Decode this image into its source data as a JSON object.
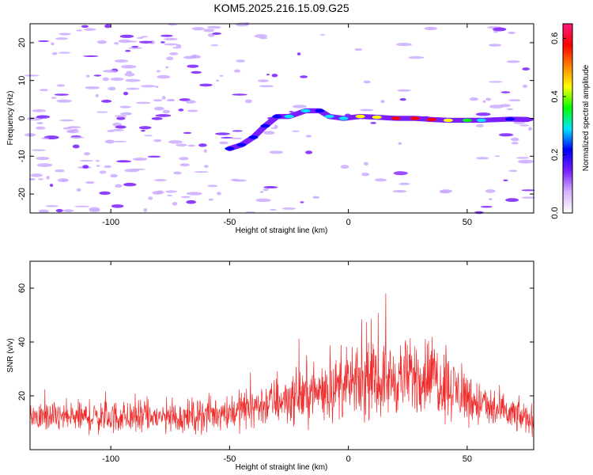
{
  "figure_title": "KOM5.2025.216.15.09.G25",
  "chart_data": [
    {
      "type": "heatmap",
      "xlabel": "Height of straight line (km)",
      "ylabel": "Frequency (Hz)",
      "xlim": [
        -134,
        78
      ],
      "ylim": [
        -25,
        25
      ],
      "xticks": [
        "-100",
        "-50",
        "0",
        "50"
      ],
      "xtick_values": [
        -100,
        -50,
        0,
        50
      ],
      "yticks": [
        "-20",
        "-10",
        "0",
        "10",
        "20"
      ],
      "ytick_values": [
        -20,
        -10,
        0,
        10,
        20
      ],
      "colorbar": {
        "label": "Normalized spectral amplitude",
        "range": [
          0.0,
          0.65
        ],
        "ticks": [
          "0.0",
          "0.2",
          "0.4",
          "0.6"
        ],
        "tick_values": [
          0.0,
          0.2,
          0.4,
          0.6
        ],
        "colors": [
          "#ffffff",
          "#d6b2ff",
          "#7a1fff",
          "#0000ff",
          "#00e5ff",
          "#00ff00",
          "#ffff00",
          "#ff8000",
          "#ff0000",
          "#ff1a80"
        ]
      },
      "main_trace": [
        {
          "x": -50,
          "y": -8.0,
          "amplitude": 0.22
        },
        {
          "x": -45,
          "y": -7.0,
          "amplitude": 0.22
        },
        {
          "x": -40,
          "y": -5.0,
          "amplitude": 0.2
        },
        {
          "x": -35,
          "y": -2.0,
          "amplitude": 0.2
        },
        {
          "x": -30,
          "y": 0.5,
          "amplitude": 0.25
        },
        {
          "x": -25,
          "y": 0.5,
          "amplitude": 0.3
        },
        {
          "x": -18,
          "y": 2.0,
          "amplitude": 0.28
        },
        {
          "x": -12,
          "y": 2.0,
          "amplitude": 0.25
        },
        {
          "x": -8,
          "y": 0.5,
          "amplitude": 0.3
        },
        {
          "x": -2,
          "y": 0.0,
          "amplitude": 0.3
        },
        {
          "x": 5,
          "y": 0.5,
          "amplitude": 0.4
        },
        {
          "x": 12,
          "y": 0.3,
          "amplitude": 0.45
        },
        {
          "x": 20,
          "y": 0.0,
          "amplitude": 0.55
        },
        {
          "x": 28,
          "y": 0.0,
          "amplitude": 0.6
        },
        {
          "x": 35,
          "y": -0.3,
          "amplitude": 0.55
        },
        {
          "x": 42,
          "y": -0.5,
          "amplitude": 0.45
        },
        {
          "x": 50,
          "y": -0.5,
          "amplitude": 0.35
        },
        {
          "x": 56,
          "y": -0.5,
          "amplitude": 0.3
        },
        {
          "x": 68,
          "y": -0.2,
          "amplitude": 0.2
        },
        {
          "x": 76,
          "y": -0.3,
          "amplitude": 0.18
        }
      ]
    },
    {
      "type": "line",
      "xlabel": "Height of straight line (km)",
      "ylabel": "SNR (v/v)",
      "xlim": [
        -134,
        78
      ],
      "ylim": [
        0,
        70
      ],
      "xticks": [
        "-100",
        "-50",
        "0",
        "50"
      ],
      "xtick_values": [
        -100,
        -50,
        0,
        50
      ],
      "yticks": [
        "20",
        "40",
        "60"
      ],
      "ytick_values": [
        20,
        40,
        60
      ],
      "series": [
        {
          "color": "#ee2c2c",
          "envelope": [
            {
              "x": -134,
              "mean": 12,
              "spread": 8
            },
            {
              "x": -100,
              "mean": 12,
              "spread": 9
            },
            {
              "x": -70,
              "mean": 12,
              "spread": 9
            },
            {
              "x": -50,
              "mean": 14,
              "spread": 10
            },
            {
              "x": -30,
              "mean": 18,
              "spread": 13
            },
            {
              "x": -10,
              "mean": 22,
              "spread": 16
            },
            {
              "x": 0,
              "mean": 24,
              "spread": 18
            },
            {
              "x": 10,
              "mean": 25,
              "spread": 19
            },
            {
              "x": 25,
              "mean": 27,
              "spread": 20
            },
            {
              "x": 35,
              "mean": 28,
              "spread": 22
            },
            {
              "x": 45,
              "mean": 22,
              "spread": 17
            },
            {
              "x": 60,
              "mean": 15,
              "spread": 11
            },
            {
              "x": 78,
              "mean": 11,
              "spread": 8
            }
          ]
        }
      ]
    }
  ]
}
